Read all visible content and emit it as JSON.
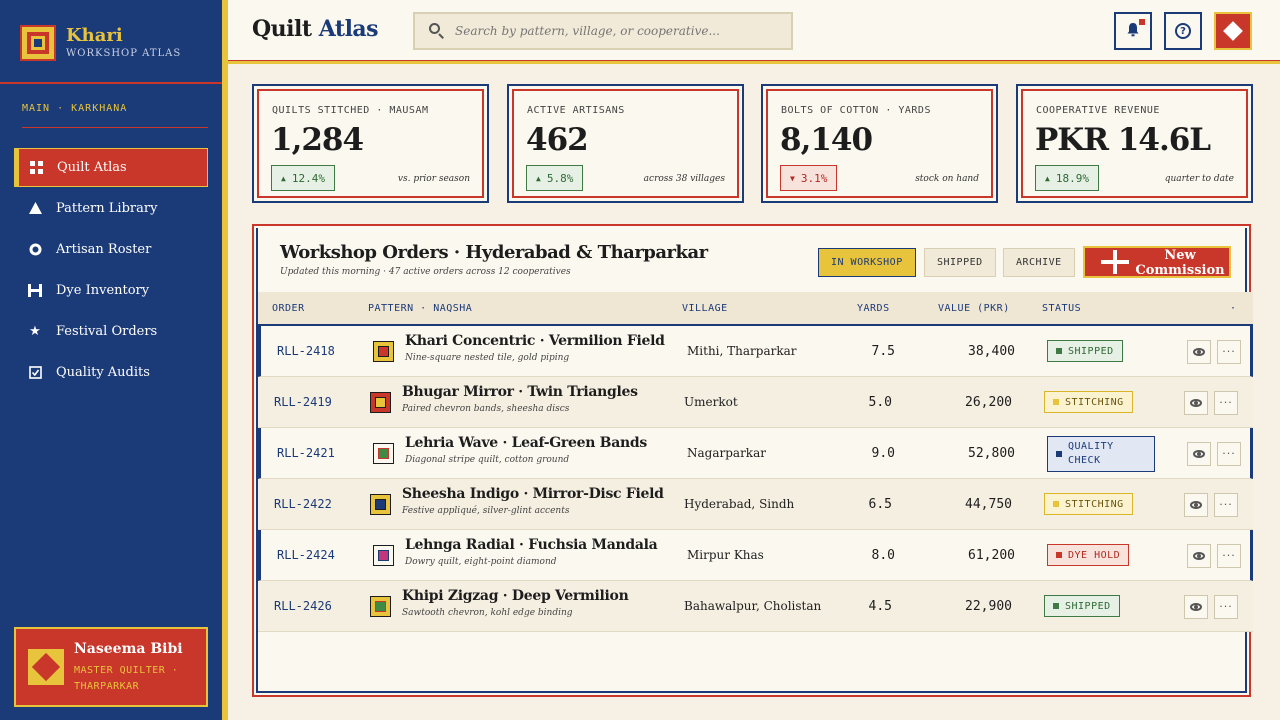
{
  "brand": {
    "name": "Khari",
    "subtitle": "WORKSHOP ATLAS"
  },
  "sidebar": {
    "section": "MAIN · KARKHANA",
    "items": [
      {
        "label": "Quilt Atlas",
        "icon": "grid-icon",
        "active": true
      },
      {
        "label": "Pattern Library",
        "icon": "triangle-icon"
      },
      {
        "label": "Artisan Roster",
        "icon": "circle-icon"
      },
      {
        "label": "Dye Inventory",
        "icon": "frame-icon"
      },
      {
        "label": "Festival Orders",
        "icon": "star-icon"
      },
      {
        "label": "Quality Audits",
        "icon": "checkbox-icon"
      }
    ]
  },
  "user": {
    "name": "Naseema Bibi",
    "role": "MASTER QUILTER · THARPARKAR"
  },
  "header": {
    "title_main": "Quilt",
    "title_accent": "Atlas",
    "search_placeholder": "Search by pattern, village, or cooperative..."
  },
  "kpis": [
    {
      "label": "QUILTS STITCHED · MAUSAM",
      "value": "1,284",
      "delta": "12.4%",
      "direction": "up",
      "note": "vs. prior season"
    },
    {
      "label": "ACTIVE ARTISANS",
      "value": "462",
      "delta": "5.8%",
      "direction": "up",
      "note": "across 38 villages"
    },
    {
      "label": "BOLTS OF COTTON · YARDS",
      "value": "8,140",
      "delta": "3.1%",
      "direction": "down",
      "note": "stock on hand"
    },
    {
      "label": "COOPERATIVE REVENUE",
      "value": "PKR 14.6L",
      "delta": "18.9%",
      "direction": "up",
      "note": "quarter to date"
    }
  ],
  "orders": {
    "title": "Workshop Orders · Hyderabad & Tharparkar",
    "subtitle": "Updated this morning · 47 active orders across 12 cooperatives",
    "filters": [
      "IN WORKSHOP",
      "SHIPPED",
      "ARCHIVE"
    ],
    "new_button": "New Commission",
    "columns": [
      "ORDER",
      "PATTERN · NAQSHA",
      "VILLAGE",
      "YARDS",
      "VALUE (PKR)",
      "STATUS",
      "·"
    ],
    "rows": [
      {
        "id": "RLL-2418",
        "name": "Khari Concentric · Vermilion Field",
        "desc": "Nine-square nested tile, gold piping",
        "village": "Mithi, Tharparkar",
        "yards": "7.5",
        "value": "38,400",
        "status": "SHIPPED"
      },
      {
        "id": "RLL-2419",
        "name": "Bhugar Mirror · Twin Triangles",
        "desc": "Paired chevron bands, sheesha discs",
        "village": "Umerkot",
        "yards": "5.0",
        "value": "26,200",
        "status": "STITCHING"
      },
      {
        "id": "RLL-2421",
        "name": "Lehria Wave · Leaf-Green Bands",
        "desc": "Diagonal stripe quilt, cotton ground",
        "village": "Nagarparkar",
        "yards": "9.0",
        "value": "52,800",
        "status": "QUALITY CHECK"
      },
      {
        "id": "RLL-2422",
        "name": "Sheesha Indigo · Mirror-Disc Field",
        "desc": "Festive appliqué, silver-glint accents",
        "village": "Hyderabad, Sindh",
        "yards": "6.5",
        "value": "44,750",
        "status": "STITCHING"
      },
      {
        "id": "RLL-2424",
        "name": "Lehnga Radial · Fuchsia Mandala",
        "desc": "Dowry quilt, eight-point diamond",
        "village": "Mirpur Khas",
        "yards": "8.0",
        "value": "61,200",
        "status": "DYE HOLD"
      },
      {
        "id": "RLL-2426",
        "name": "Khipi Zigzag · Deep Vermilion",
        "desc": "Sawtooth chevron, kohl edge binding",
        "village": "Bahawalpur, Cholistan",
        "yards": "4.5",
        "value": "22,900",
        "status": "SHIPPED"
      }
    ]
  },
  "colors": {
    "indigo": "#1b3a78",
    "vermilion": "#c9362a",
    "turmeric": "#e8c43c",
    "cream": "#f6f1e4"
  }
}
